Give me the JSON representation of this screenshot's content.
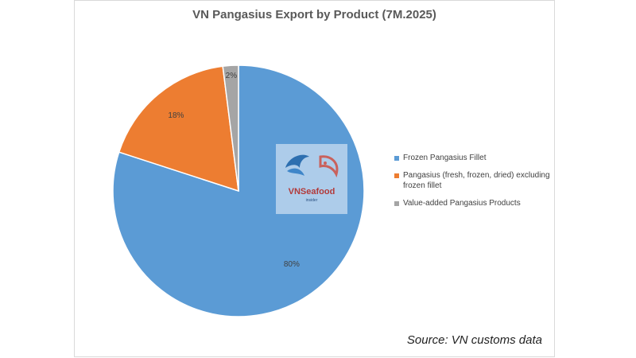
{
  "chart_data": {
    "type": "pie",
    "title": "VN Pangasius Export by Product (7M.2025)",
    "categories": [
      "Frozen Pangasius Fillet",
      "Pangasius (fresh, frozen, dried) excluding frozen fillet",
      "Value-added Pangasius Products"
    ],
    "values": [
      80,
      18,
      2
    ],
    "data_labels": [
      "80%",
      "18%",
      "2%"
    ],
    "colors": [
      "#5b9bd5",
      "#ed7d31",
      "#a5a5a5"
    ],
    "legend_position": "right"
  },
  "logo": {
    "name": "VNSeafood",
    "sub": "insider"
  },
  "source": "Source: VN customs data"
}
